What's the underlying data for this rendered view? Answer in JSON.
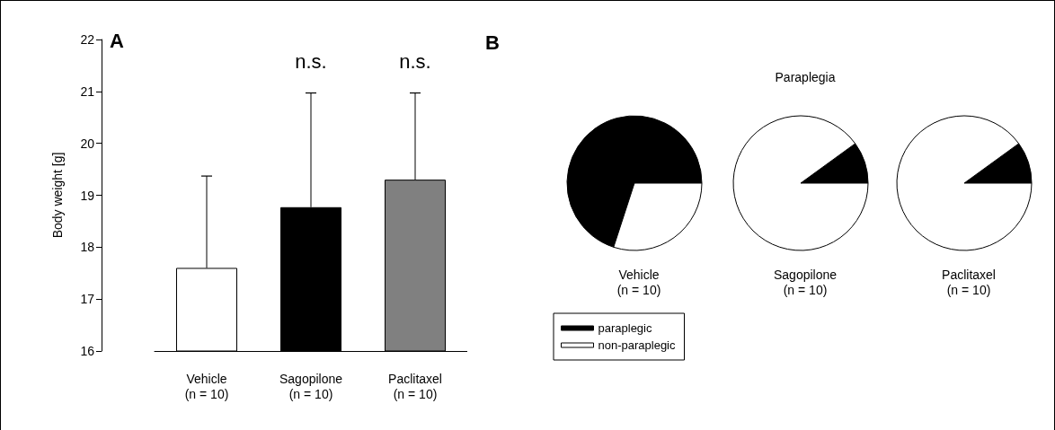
{
  "chart_data": [
    {
      "type": "bar",
      "ylabel": "Body weight [g]",
      "categories": [
        "Vehicle\n(n = 10)",
        "Sagopilone\n(n = 10)",
        "Paclitaxel\n(n = 10)"
      ],
      "values": [
        17.6,
        18.77,
        19.3
      ],
      "colors": [
        "#ffffff",
        "#000000",
        "#808080"
      ],
      "errors": [
        [
          17.6,
          19.37
        ],
        [
          18.77,
          20.97
        ],
        [
          19.3,
          20.97
        ]
      ],
      "ylim": [
        16,
        22
      ],
      "yticks": [
        16,
        17,
        18,
        19,
        20,
        21,
        22
      ],
      "grid": false,
      "legend": false,
      "annotations": [
        "A",
        "n.s.",
        "n.s."
      ]
    },
    {
      "type": "pie",
      "xlabel": "Vehicle\n(n = 10)",
      "categories": [
        "paraplegic",
        "non-paraplegic"
      ],
      "values": [
        70,
        30
      ],
      "colors": [
        "#000000",
        "#ffffff"
      ],
      "legend": "bottom left",
      "annotations": [
        "B"
      ]
    },
    {
      "type": "pie",
      "title": "Paraplegia",
      "xlabel": "Sagopilone\n(n = 10)",
      "categories": [
        null,
        null
      ],
      "values": [
        10,
        90
      ],
      "colors": [
        "#000000",
        "#ffffff"
      ],
      "legend": false
    },
    {
      "type": "pie",
      "xlabel": "Paclitaxel\n(n = 10)",
      "categories": [
        null,
        null
      ],
      "values": [
        10,
        90
      ],
      "colors": [
        "#000000",
        "#ffffff"
      ],
      "legend": false
    }
  ]
}
